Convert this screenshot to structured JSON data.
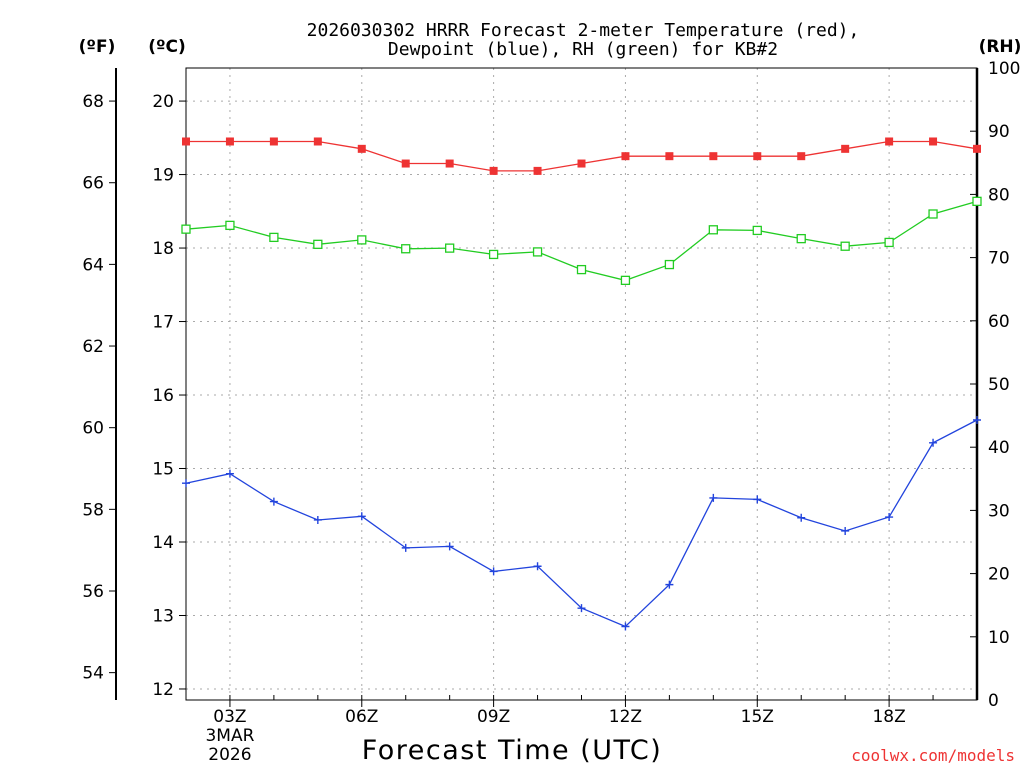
{
  "chart_data": {
    "type": "line",
    "title_line1": "2026030302 HRRR Forecast 2-meter Temperature (red),",
    "title_line2": "Dewpoint (blue), RH (green) for KB#2",
    "xlabel": "Forecast Time (UTC)",
    "watermark": "coolwx.com/models",
    "units": {
      "fahrenheit": "(ºF)",
      "celsius": "(ºC)",
      "rh": "(RH)"
    },
    "x_hours": [
      2,
      3,
      4,
      5,
      6,
      7,
      8,
      9,
      10,
      11,
      12,
      13,
      14,
      15,
      16,
      17,
      18,
      19,
      20
    ],
    "xlim": [
      2,
      20
    ],
    "x_ticks": [
      {
        "hour": 3,
        "label": "03Z",
        "sub1": "3MAR",
        "sub2": "2026"
      },
      {
        "hour": 6,
        "label": "06Z"
      },
      {
        "hour": 9,
        "label": "09Z"
      },
      {
        "hour": 12,
        "label": "12Z"
      },
      {
        "hour": 15,
        "label": "15Z"
      },
      {
        "hour": 18,
        "label": "18Z"
      }
    ],
    "celsius_axis": {
      "range": [
        11.85,
        20.45
      ],
      "ticks": [
        12,
        13,
        14,
        15,
        16,
        17,
        18,
        19,
        20
      ]
    },
    "fahrenheit_axis": {
      "ticks": [
        54,
        56,
        58,
        60,
        62,
        64,
        66,
        68
      ]
    },
    "rh_axis": {
      "range": [
        0,
        100
      ],
      "ticks": [
        0,
        10,
        20,
        30,
        40,
        50,
        60,
        70,
        80,
        90,
        100
      ]
    },
    "series": [
      {
        "name": "Temperature",
        "color": "#ee3333",
        "marker": "filled-square",
        "axis": "celsius",
        "values": [
          19.45,
          19.45,
          19.45,
          19.45,
          19.35,
          19.15,
          19.15,
          19.05,
          19.05,
          19.15,
          19.25,
          19.25,
          19.25,
          19.25,
          19.25,
          19.35,
          19.45,
          19.45,
          19.35
        ]
      },
      {
        "name": "Dewpoint",
        "color": "#2244dd",
        "marker": "plus",
        "axis": "celsius",
        "values": [
          14.8,
          14.93,
          14.55,
          14.3,
          14.35,
          13.92,
          13.94,
          13.6,
          13.67,
          13.1,
          12.85,
          13.42,
          14.6,
          14.58,
          14.33,
          14.15,
          14.34,
          15.35,
          15.66
        ]
      },
      {
        "name": "RH",
        "color": "#22cc22",
        "marker": "open-square",
        "axis": "rh",
        "values": [
          74.5,
          75.1,
          73.2,
          72.1,
          72.8,
          71.4,
          71.5,
          70.5,
          70.9,
          68.1,
          66.4,
          68.9,
          74.4,
          74.3,
          73.0,
          71.8,
          72.4,
          76.9,
          78.9
        ]
      }
    ]
  }
}
